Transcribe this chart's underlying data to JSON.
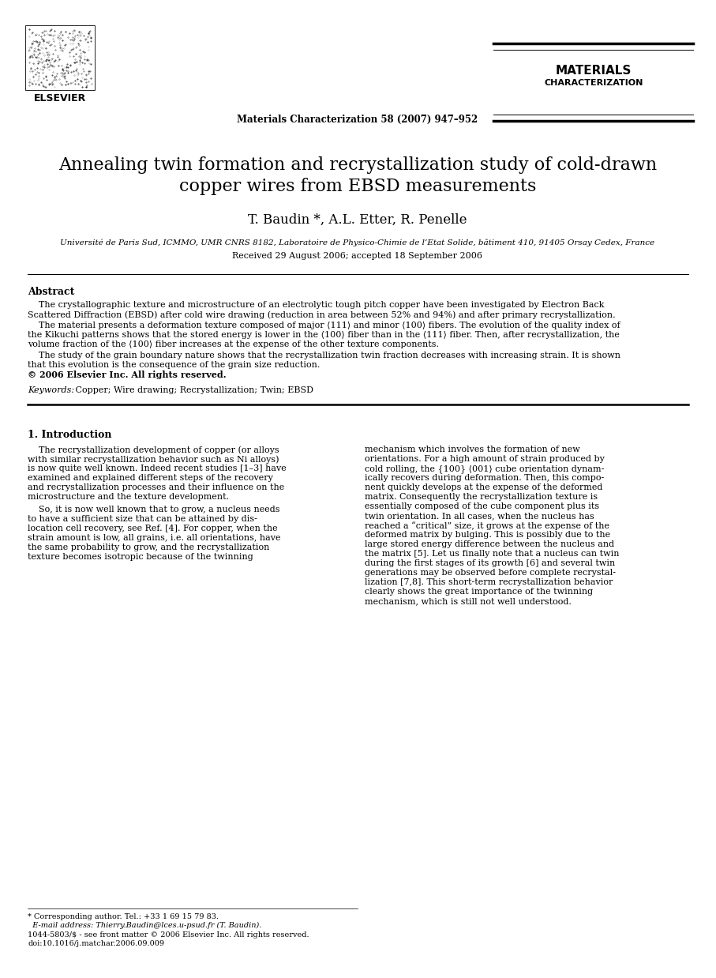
{
  "title_line1": "Annealing twin formation and recrystallization study of cold-drawn",
  "title_line2": "copper wires from EBSD measurements",
  "authors": "T. Baudin *, A.L. Etter, R. Penelle",
  "affiliation": "Université de Paris Sud, ICMMO, UMR CNRS 8182, Laboratoire de Physico-Chimie de l’Etat Solide, bâtiment 410, 91405 Orsay Cedex, France",
  "received": "Received 29 August 2006; accepted 18 September 2006",
  "journal_line": "Materials Characterization 58 (2007) 947–952",
  "elsevier_text": "ELSEVIER",
  "journal_title1": "MATERIALS",
  "journal_title2": "CHARACTERIZATION",
  "abstract_label": "Abstract",
  "abstract_copyright": "© 2006 Elsevier Inc. All rights reserved.",
  "keywords_label": "Keywords:",
  "keywords_text": " Copper; Wire drawing; Recrystallization; Twin; EBSD",
  "section1_label": "1. Introduction",
  "footnote1": "* Corresponding author. Tel.: +33 1 69 15 79 83.",
  "footnote2": "  E-mail address: Thierry.Baudin@lces.u-psud.fr (T. Baudin).",
  "footnote3": "1044-5803/$ - see front matter © 2006 Elsevier Inc. All rights reserved.",
  "footnote4": "doi:10.1016/j.matchar.2006.09.009",
  "abs_p1_lines": [
    "    The crystallographic texture and microstructure of an electrolytic tough pitch copper have been investigated by Electron Back",
    "Scattered Diffraction (EBSD) after cold wire drawing (reduction in area between 52% and 94%) and after primary recrystallization."
  ],
  "abs_p2_lines": [
    "    The material presents a deformation texture composed of major ⟨111⟩ and minor ⟨100⟩ fibers. The evolution of the quality index of",
    "the Kikuchi patterns shows that the stored energy is lower in the ⟨100⟩ fiber than in the ⟨111⟩ fiber. Then, after recrystallization, the",
    "volume fraction of the ⟨100⟩ fiber increases at the expense of the other texture components."
  ],
  "abs_p3_lines": [
    "    The study of the grain boundary nature shows that the recrystallization twin fraction decreases with increasing strain. It is shown",
    "that this evolution is the consequence of the grain size reduction."
  ],
  "col1_p1_lines": [
    "    The recrystallization development of copper (or alloys",
    "with similar recrystallization behavior such as Ni alloys)",
    "is now quite well known. Indeed recent studies [1–3] have",
    "examined and explained different steps of the recovery",
    "and recrystallization processes and their influence on the",
    "microstructure and the texture development."
  ],
  "col1_p2_lines": [
    "    So, it is now well known that to grow, a nucleus needs",
    "to have a sufficient size that can be attained by dis-",
    "location cell recovery, see Ref. [4]. For copper, when the",
    "strain amount is low, all grains, i.e. all orientations, have",
    "the same probability to grow, and the recrystallization",
    "texture becomes isotropic because of the twinning"
  ],
  "col2_p1_lines": [
    "mechanism which involves the formation of new",
    "orientations. For a high amount of strain produced by",
    "cold rolling, the {100} ⟨001⟩ cube orientation dynam-",
    "ically recovers during deformation. Then, this compo-",
    "nent quickly develops at the expense of the deformed",
    "matrix. Consequently the recrystallization texture is",
    "essentially composed of the cube component plus its",
    "twin orientation. In all cases, when the nucleus has",
    "reached a “critical” size, it grows at the expense of the",
    "deformed matrix by bulging. This is possibly due to the",
    "large stored energy difference between the nucleus and",
    "the matrix [5]. Let us finally note that a nucleus can twin",
    "during the first stages of its growth [6] and several twin",
    "generations may be observed before complete recrystal-",
    "lization [7,8]. This short-term recrystallization behavior",
    "clearly shows the great importance of the twinning",
    "mechanism, which is still not well understood."
  ],
  "bg_color": "#ffffff",
  "text_color": "#000000"
}
